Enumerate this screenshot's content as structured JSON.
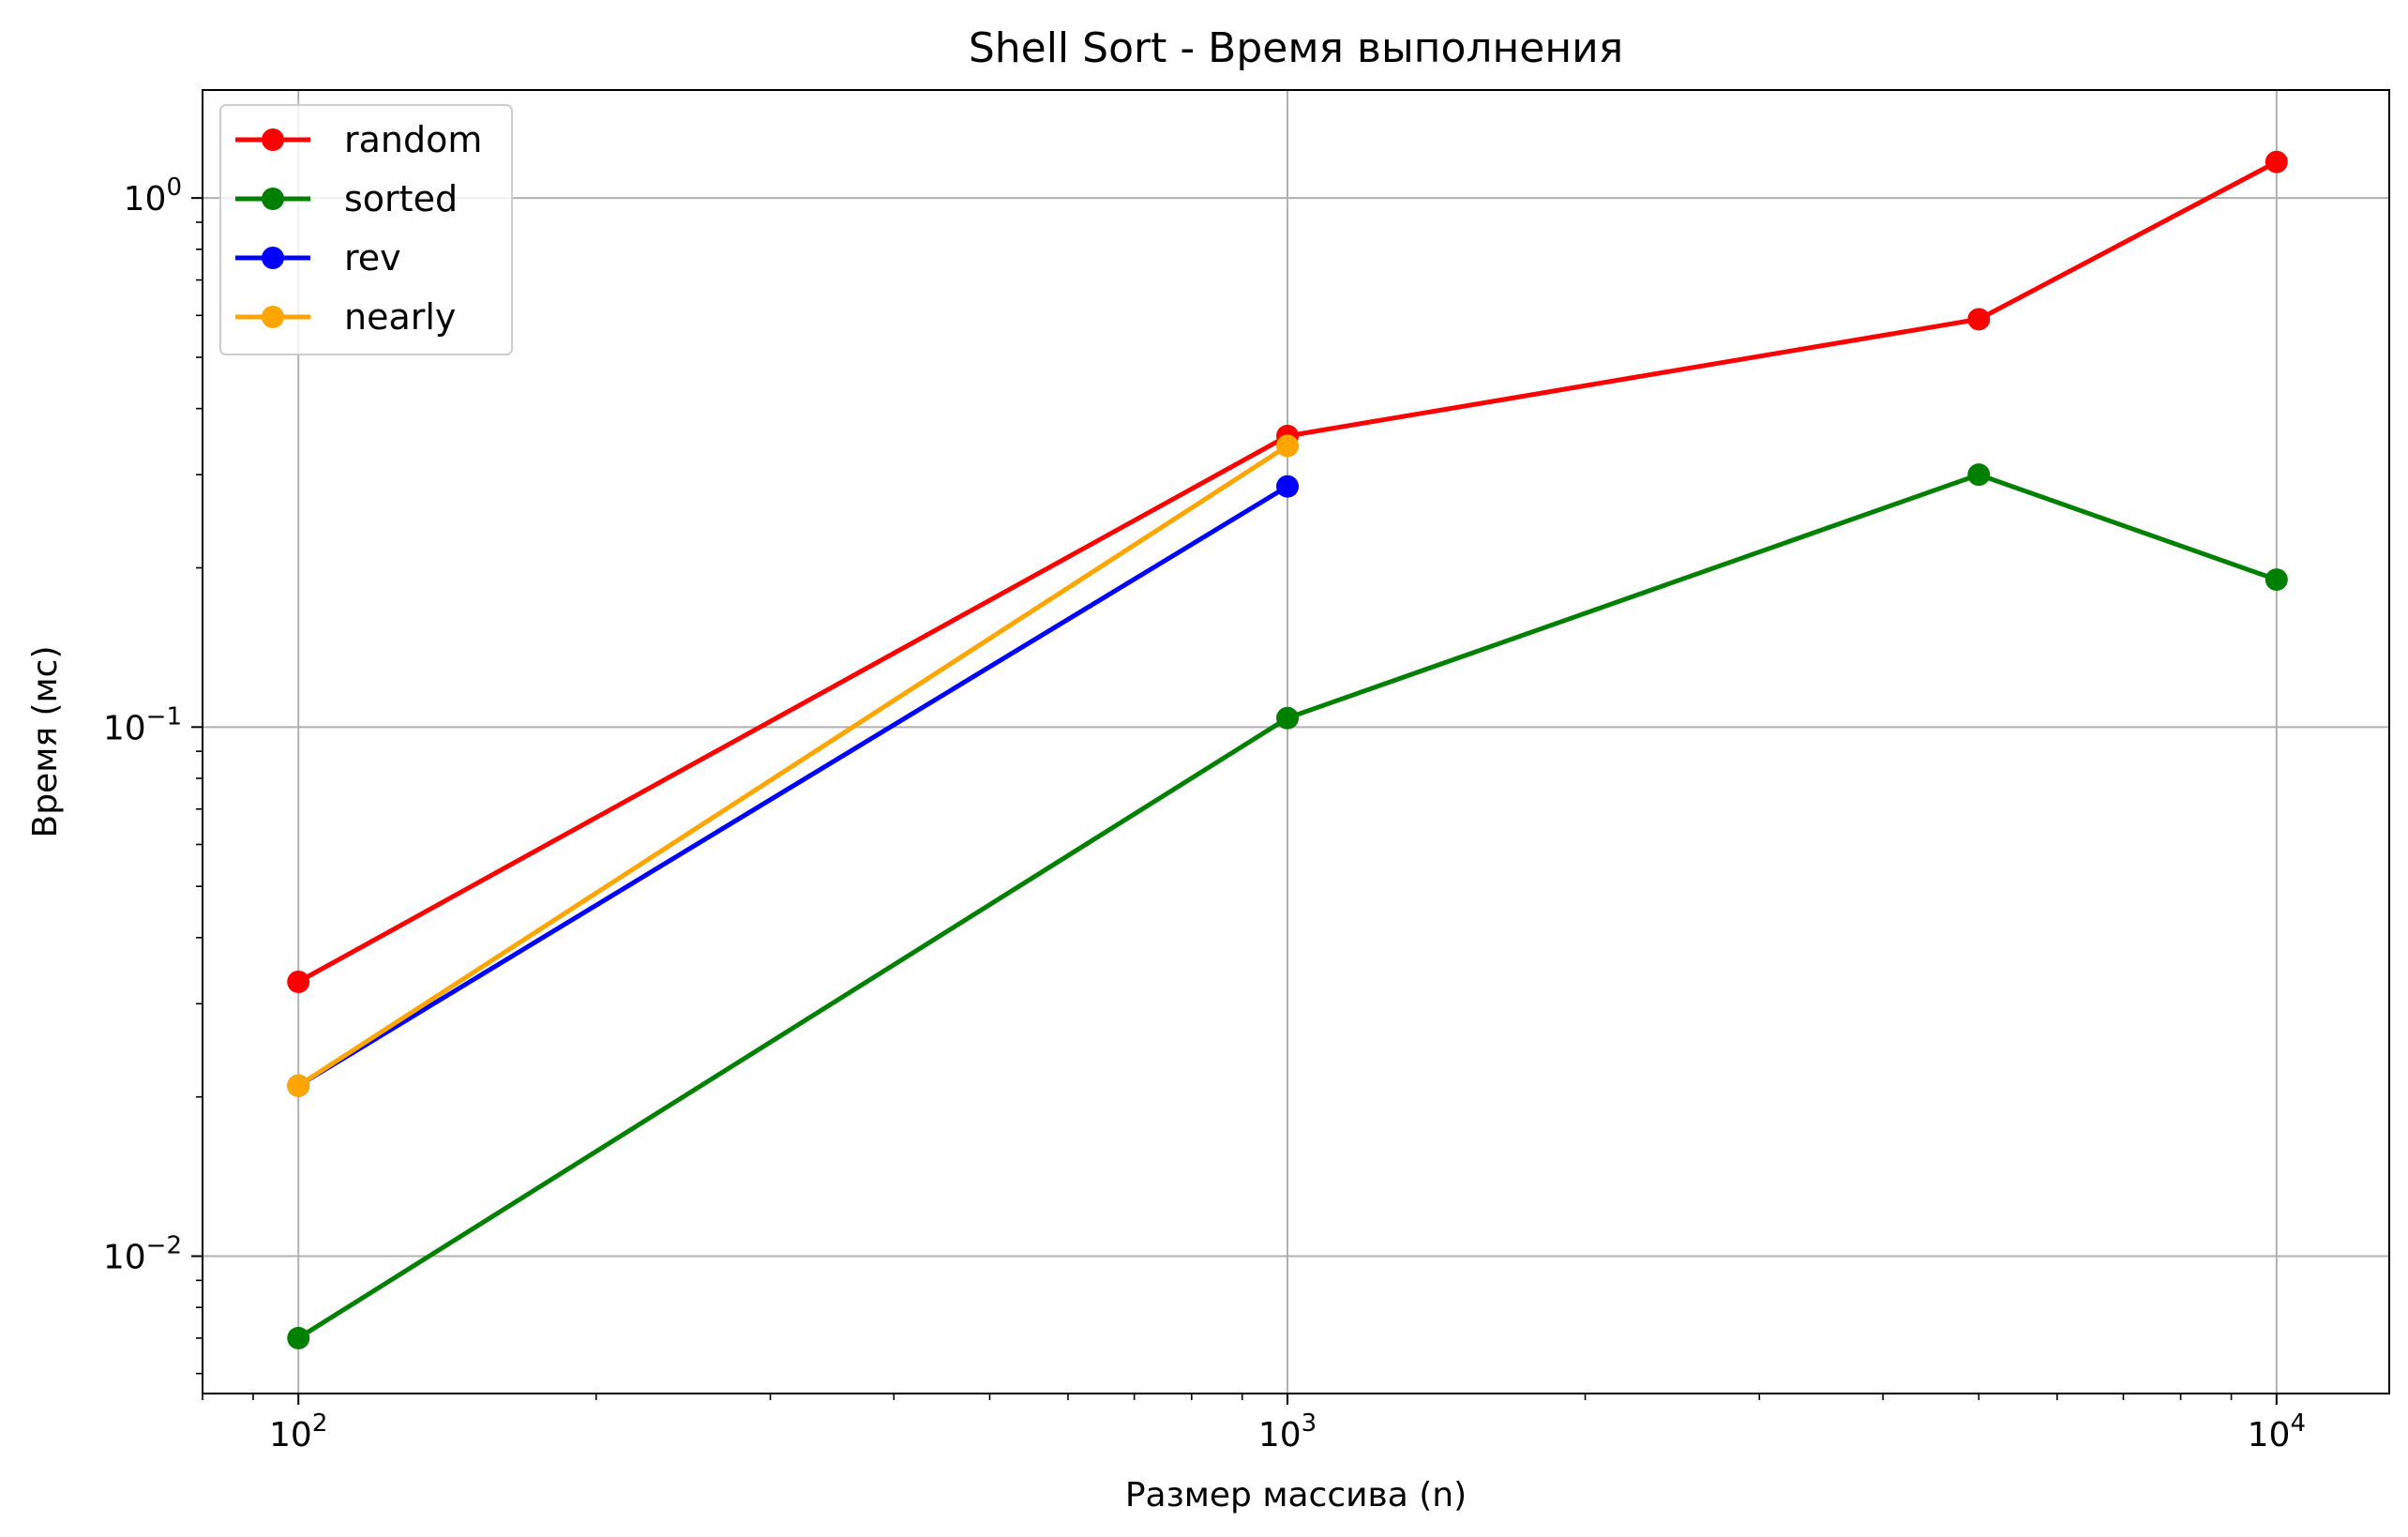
{
  "chart_data": {
    "type": "line",
    "title": "Shell Sort - Время выполнения",
    "xlabel": "Размер массива (n)",
    "ylabel": "Время (мс)",
    "x_scale": "log",
    "y_scale": "log",
    "xlim": [
      80,
      13000
    ],
    "ylim": [
      0.0055,
      1.6
    ],
    "grid": true,
    "legend_position": "top-left",
    "x_ticks": [
      {
        "value": 100,
        "base": "10",
        "exp": "2"
      },
      {
        "value": 1000,
        "base": "10",
        "exp": "3"
      },
      {
        "value": 10000,
        "base": "10",
        "exp": "4"
      }
    ],
    "y_ticks": [
      {
        "value": 0.01,
        "base": "10",
        "exp": "−2"
      },
      {
        "value": 0.1,
        "base": "10",
        "exp": "−1"
      },
      {
        "value": 1,
        "base": "10",
        "exp": "0"
      }
    ],
    "series": [
      {
        "name": "random",
        "color": "#ff0000",
        "x": [
          100,
          1000,
          5000,
          10000
        ],
        "y": [
          0.033,
          0.355,
          0.59,
          1.17
        ]
      },
      {
        "name": "sorted",
        "color": "#008000",
        "x": [
          100,
          1000,
          5000,
          10000
        ],
        "y": [
          0.007,
          0.104,
          0.3,
          0.19
        ]
      },
      {
        "name": "rev",
        "color": "#0000ff",
        "x": [
          100,
          1000
        ],
        "y": [
          0.021,
          0.285
        ]
      },
      {
        "name": "nearly",
        "color": "#ffa500",
        "x": [
          100,
          1000
        ],
        "y": [
          0.021,
          0.34
        ]
      }
    ]
  }
}
